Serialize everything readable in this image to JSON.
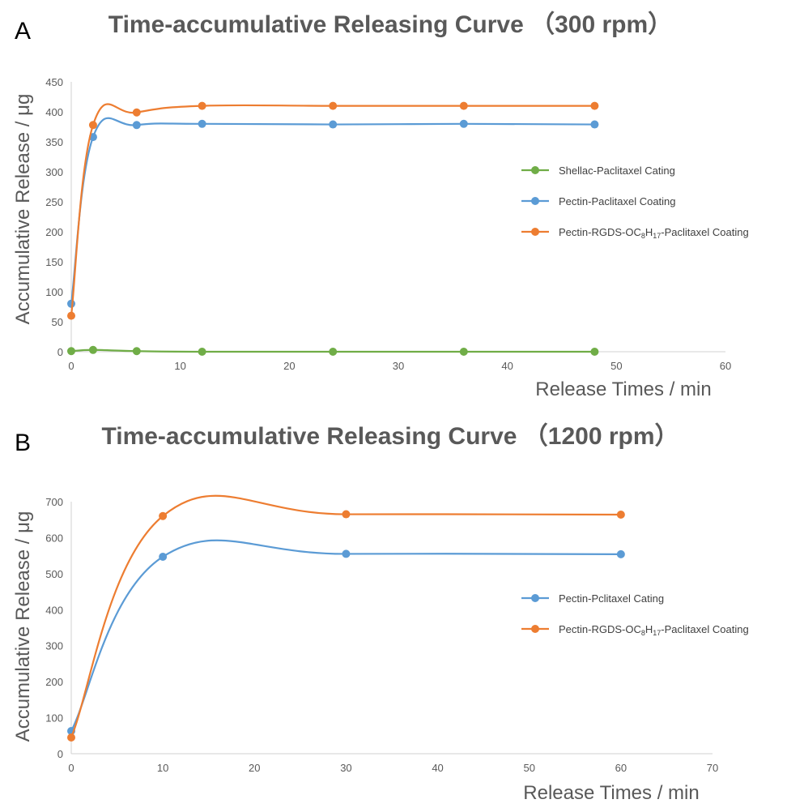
{
  "chart_data": [
    {
      "panel_label": "A",
      "type": "line",
      "title": "Time-accumulative Releasing Curve （300 rpm）",
      "xlabel": "Release Times / min",
      "ylabel": "Accumulative Release / μg",
      "xlim": [
        0,
        60
      ],
      "ylim": [
        0,
        450
      ],
      "xticks": [
        0,
        10,
        20,
        30,
        40,
        50,
        60
      ],
      "yticks": [
        0,
        50,
        100,
        150,
        200,
        250,
        300,
        350,
        400,
        450
      ],
      "grid": false,
      "legend_position": "right",
      "series": [
        {
          "name": "Shellac-Paclitaxel Cating",
          "color": "#70ad47",
          "x": [
            0,
            2,
            6,
            12,
            24,
            36,
            48
          ],
          "y": [
            1,
            3,
            1,
            0,
            0,
            0,
            0
          ]
        },
        {
          "name": "Pectin-Paclitaxel Coating",
          "color": "#5b9bd5",
          "x": [
            0,
            2,
            6,
            12,
            24,
            36,
            48
          ],
          "y": [
            80,
            358,
            378,
            380,
            379,
            380,
            379
          ]
        },
        {
          "name": "Pectin-RGDS-OC8H17-Paclitaxel Coating",
          "color": "#ed7d31",
          "name_parts": [
            "Pectin-RGDS-OC",
            "8",
            "H",
            "17",
            "-Paclitaxel Coating"
          ],
          "x": [
            0,
            2,
            6,
            12,
            24,
            36,
            48
          ],
          "y": [
            60,
            378,
            399,
            410,
            410,
            410,
            410
          ]
        }
      ]
    },
    {
      "panel_label": "B",
      "type": "line",
      "title": "Time-accumulative Releasing Curve （1200 rpm）",
      "xlabel": "Release Times / min",
      "ylabel": "Accumulative Release / μg",
      "xlim": [
        0,
        70
      ],
      "ylim": [
        0,
        700
      ],
      "xticks": [
        0,
        10,
        20,
        30,
        40,
        50,
        60,
        70
      ],
      "yticks": [
        0,
        100,
        200,
        300,
        400,
        500,
        600,
        700
      ],
      "grid": false,
      "legend_position": "right",
      "series": [
        {
          "name": "Pectin-Pclitaxel Cating",
          "color": "#5b9bd5",
          "x": [
            0,
            10,
            30,
            60
          ],
          "y": [
            63,
            547,
            555,
            554
          ]
        },
        {
          "name": "Pectin-RGDS-OC8H17-Paclitaxel Coating",
          "color": "#ed7d31",
          "name_parts": [
            "Pectin-RGDS-OC",
            "8",
            "H",
            "17",
            "-Paclitaxel Coating"
          ],
          "x": [
            0,
            10,
            30,
            60
          ],
          "y": [
            45,
            660,
            665,
            664
          ]
        }
      ]
    }
  ]
}
